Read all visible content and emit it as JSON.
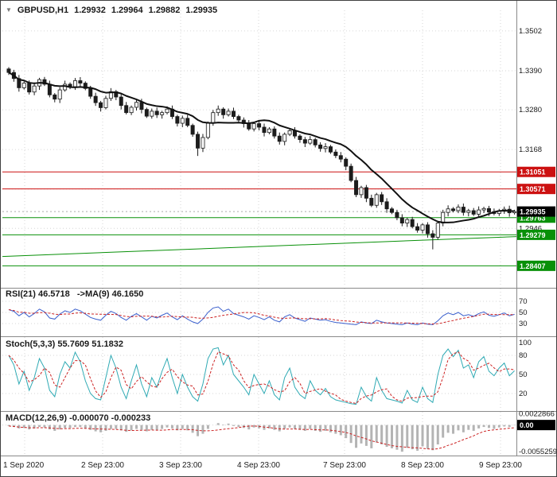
{
  "header": {
    "symbol": "GBPUSD,H1",
    "open": "1.29932",
    "high": "1.29964",
    "low": "1.29882",
    "close": "1.29935"
  },
  "colors": {
    "resistance": "#cc1111",
    "support": "#089008",
    "trendline": "#089008",
    "current_price_bg": "#000000",
    "label_text": "#ffffff",
    "ma_line": "#111111",
    "candle_bear": "#1c1c1c",
    "candle_bull": "#f6f6f6",
    "rsi_line": "#3a5fcd",
    "stoch_line": "#2faab4",
    "signal_line": "#cc2222",
    "macd_hist": "#b4b4b4",
    "grid": "#d6d6d6",
    "axis_text": "#1a1a1a",
    "divider": "#8a8a8a"
  },
  "chart_data": [
    {
      "type": "candlestick",
      "title": "GBPUSD,H1",
      "timeframe": "H1",
      "ylim": [
        1.279,
        1.356
      ],
      "y_ticks": [
        1.3502,
        1.339,
        1.328,
        1.3168,
        1.2946
      ],
      "y_tick_labels": [
        "1.3502",
        "1.3390",
        "1.3280",
        "1.3168",
        "1.2946"
      ],
      "y_grid_extra": [
        1.3057
      ],
      "x_labels": [
        "1 Sep 2020",
        "2 Sep 23:00",
        "3 Sep 23:00",
        "4 Sep 23:00",
        "7 Sep 23:00",
        "8 Sep 23:00",
        "9 Sep 23:00"
      ],
      "first_open": 1.3395,
      "closes": [
        1.3385,
        1.3368,
        1.3342,
        1.3355,
        1.333,
        1.3347,
        1.3365,
        1.3352,
        1.3322,
        1.331,
        1.3336,
        1.3352,
        1.3345,
        1.3362,
        1.3355,
        1.334,
        1.3318,
        1.33,
        1.3286,
        1.3312,
        1.3331,
        1.3316,
        1.3292,
        1.3272,
        1.3287,
        1.3301,
        1.3281,
        1.3262,
        1.3276,
        1.3266,
        1.3272,
        1.3282,
        1.3261,
        1.3242,
        1.3256,
        1.3236,
        1.3211,
        1.3172,
        1.3202,
        1.3242,
        1.3272,
        1.3282,
        1.3266,
        1.3276,
        1.3261,
        1.3251,
        1.3241,
        1.3226,
        1.3241,
        1.3231,
        1.3216,
        1.3226,
        1.3206,
        1.3191,
        1.3211,
        1.3221,
        1.3206,
        1.3196,
        1.3186,
        1.3196,
        1.3181,
        1.3171,
        1.3176,
        1.3161,
        1.3151,
        1.3141,
        1.3121,
        1.3081,
        1.3041,
        1.3061,
        1.3031,
        1.3011,
        1.3041,
        1.3021,
        1.3001,
        1.2991,
        1.2976,
        1.2961,
        1.2971,
        1.2951,
        1.2941,
        1.2956,
        1.2931,
        1.2921,
        1.2961,
        1.2991,
        1.3001,
        1.2996,
        1.3006,
        1.2991,
        1.2996,
        1.2986,
        1.2998,
        1.3002,
        1.2992,
        1.2988,
        1.2996,
        1.3,
        1.299,
        1.29935
      ],
      "wick_low_overrides": {
        "37": 1.315,
        "83": 1.2887
      },
      "resistance_levels": [
        1.31051,
        1.30571
      ],
      "resistance_labels": [
        "1.31051",
        "1.30571"
      ],
      "support_levels": [
        1.29763,
        1.29279,
        1.28407
      ],
      "support_labels": [
        "1.29763",
        "1.29279",
        "1.28407"
      ],
      "current_price": 1.29935,
      "current_price_label": "1.29935",
      "trendline": {
        "from_price": 1.2867,
        "to_price": 1.2923
      },
      "overlays": [
        "moving-average"
      ]
    },
    {
      "type": "line",
      "title": "RSI(21) 46.5718   ->MA(9) 46.1650",
      "indicator": "RSI",
      "period": 21,
      "current": 46.5718,
      "ma_period": 9,
      "ma_current": 46.165,
      "ylim": [
        10,
        90
      ],
      "y_ticks": [
        70,
        50,
        30
      ],
      "y_tick_labels": [
        "70",
        "50",
        "30"
      ],
      "values": [
        55,
        52,
        44,
        50,
        42,
        48,
        56,
        51,
        40,
        38,
        47,
        53,
        50,
        56,
        53,
        47,
        41,
        38,
        36,
        45,
        52,
        48,
        41,
        36,
        43,
        48,
        42,
        36,
        43,
        40,
        45,
        49,
        42,
        37,
        44,
        38,
        33,
        30,
        38,
        50,
        58,
        60,
        52,
        56,
        48,
        45,
        42,
        38,
        44,
        41,
        37,
        42,
        36,
        33,
        42,
        46,
        40,
        37,
        34,
        40,
        38,
        36,
        37,
        34,
        32,
        31,
        30,
        29,
        28,
        33,
        31,
        30,
        36,
        33,
        31,
        30,
        29,
        28,
        31,
        29,
        28,
        31,
        29,
        28,
        35,
        44,
        49,
        46,
        50,
        44,
        46,
        43,
        48,
        51,
        45,
        43,
        46,
        49,
        44,
        46.57
      ]
    },
    {
      "type": "line",
      "title": "Stoch(5,3,3) 55.7609 51.1832",
      "indicator": "Stochastic",
      "current_k": 55.7609,
      "current_d": 51.1832,
      "ylim": [
        -5,
        105
      ],
      "y_ticks": [
        100,
        80,
        50,
        20
      ],
      "y_tick_labels": [
        "100",
        "80",
        "50",
        "20"
      ],
      "values": [
        80,
        65,
        35,
        55,
        25,
        45,
        75,
        60,
        25,
        15,
        50,
        70,
        60,
        85,
        70,
        40,
        20,
        12,
        10,
        45,
        80,
        60,
        30,
        12,
        40,
        65,
        35,
        15,
        45,
        30,
        55,
        75,
        45,
        20,
        50,
        30,
        15,
        8,
        35,
        75,
        90,
        92,
        65,
        80,
        50,
        40,
        30,
        18,
        50,
        35,
        20,
        40,
        18,
        10,
        45,
        60,
        30,
        18,
        12,
        40,
        25,
        18,
        28,
        15,
        10,
        8,
        6,
        4,
        3,
        30,
        15,
        8,
        45,
        25,
        12,
        10,
        8,
        5,
        25,
        10,
        6,
        30,
        12,
        6,
        50,
        80,
        90,
        78,
        88,
        60,
        65,
        45,
        70,
        78,
        55,
        48,
        60,
        68,
        48,
        55.76
      ]
    },
    {
      "type": "bar",
      "title": "MACD(12,26,9) -0.000070 -0.000233",
      "indicator": "MACD",
      "current_macd": -7e-05,
      "current_signal": -0.000233,
      "ylim": [
        -0.0058,
        0.0024
      ],
      "y_tick_top": 0.0022866,
      "y_tick_top_label": "0.0022866",
      "y_tick_bottom": -0.0055259,
      "y_tick_bottom_label": "-0.0055259",
      "zero_box_label": "0.00",
      "values": [
        -0.0002,
        -0.0004,
        -0.0007,
        -0.0006,
        -0.0009,
        -0.0007,
        -0.0004,
        -0.0005,
        -0.0009,
        -0.0012,
        -0.0009,
        -0.0006,
        -0.0006,
        -0.0004,
        -0.0004,
        -0.0007,
        -0.001,
        -0.0013,
        -0.0015,
        -0.0012,
        -0.0008,
        -0.0008,
        -0.0011,
        -0.0014,
        -0.0011,
        -0.0008,
        -0.001,
        -0.0013,
        -0.001,
        -0.0011,
        -0.0008,
        -0.0005,
        -0.0007,
        -0.0011,
        -0.0008,
        -0.0011,
        -0.0016,
        -0.0023,
        -0.0018,
        -0.0008,
        0.0,
        0.0004,
        0.0001,
        0.0003,
        -0.0002,
        -0.0004,
        -0.0006,
        -0.0009,
        -0.0005,
        -0.0007,
        -0.001,
        -0.0007,
        -0.001,
        -0.0013,
        -0.0008,
        -0.0005,
        -0.0008,
        -0.001,
        -0.0012,
        -0.0008,
        -0.0012,
        -0.0014,
        -0.0012,
        -0.0015,
        -0.0018,
        -0.0021,
        -0.0027,
        -0.0037,
        -0.0047,
        -0.0038,
        -0.0043,
        -0.0048,
        -0.0036,
        -0.004,
        -0.0045,
        -0.0048,
        -0.0051,
        -0.0055,
        -0.0047,
        -0.005,
        -0.0053,
        -0.0044,
        -0.0049,
        -0.0052,
        -0.004,
        -0.0026,
        -0.0016,
        -0.0018,
        -0.0011,
        -0.0015,
        -0.001,
        -0.0012,
        -0.0007,
        -0.0004,
        -0.0006,
        -0.0008,
        -0.0005,
        -0.0003,
        -0.0004,
        -7e-05
      ]
    }
  ]
}
